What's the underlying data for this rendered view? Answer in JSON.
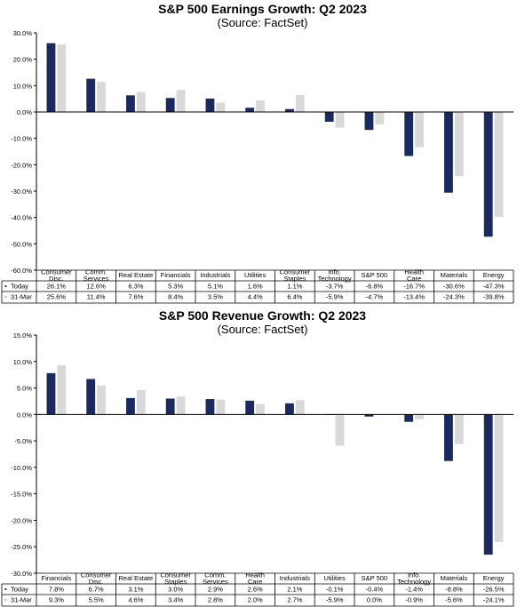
{
  "colors": {
    "today": "#1b2a5e",
    "march": "#d9d9d9",
    "grid": "#000000"
  },
  "chart_data": [
    {
      "type": "bar",
      "title": "S&P 500 Earnings Growth: Q2 2023",
      "subtitle": "(Source: FactSet)",
      "categories": [
        "Consumer Disc.",
        "Comm. Services",
        "Real Estate",
        "Financials",
        "Industrials",
        "Utilities",
        "Consumer Staples",
        "Info. Technology",
        "S&P 500",
        "Health Care",
        "Materials",
        "Energy"
      ],
      "category_lines": [
        [
          "Consumer",
          "Disc."
        ],
        [
          "Comm.",
          "Services"
        ],
        [
          "Real Estate"
        ],
        [
          "Financials"
        ],
        [
          "Industrials"
        ],
        [
          "Utilities"
        ],
        [
          "Consumer",
          "Staples"
        ],
        [
          "Info.",
          "Technology"
        ],
        [
          "S&P 500"
        ],
        [
          "Health",
          "Care"
        ],
        [
          "Materials"
        ],
        [
          "Energy"
        ]
      ],
      "series": [
        {
          "name": "Today",
          "marker": "▪",
          "values": [
            26.1,
            12.6,
            6.3,
            5.3,
            5.1,
            1.6,
            1.1,
            -3.7,
            -6.8,
            -16.7,
            -30.6,
            -47.3
          ],
          "labels": [
            "26.1%",
            "12.6%",
            "6.3%",
            "5.3%",
            "5.1%",
            "1.6%",
            "1.1%",
            "-3.7%",
            "-6.8%",
            "-16.7%",
            "-30.6%",
            "-47.3%"
          ]
        },
        {
          "name": "31-Mar",
          "marker": "▪",
          "values": [
            25.6,
            11.4,
            7.6,
            8.4,
            3.5,
            4.4,
            6.4,
            -5.9,
            -4.7,
            -13.4,
            -24.3,
            -39.8
          ],
          "labels": [
            "25.6%",
            "11.4%",
            "7.6%",
            "8.4%",
            "3.5%",
            "4.4%",
            "6.4%",
            "-5.9%",
            "-4.7%",
            "-13.4%",
            "-24.3%",
            "-39.8%"
          ]
        }
      ],
      "ylim": [
        -60,
        30
      ],
      "yticks": [
        30,
        20,
        10,
        0,
        -10,
        -20,
        -30,
        -40,
        -50,
        -60
      ],
      "ytick_labels": [
        "30.0%",
        "20.0%",
        "10.0%",
        "0.0%",
        "-10.0%",
        "-20.0%",
        "-30.0%",
        "-40.0%",
        "-50.0%",
        "-60.0%"
      ],
      "grid": false,
      "legend": "data-table"
    },
    {
      "type": "bar",
      "title": "S&P 500 Revenue Growth: Q2 2023",
      "subtitle": "(Source: FactSet)",
      "categories": [
        "Financials",
        "Consumer Disc.",
        "Real Estate",
        "Consumer Staples",
        "Comm. Services",
        "Health Care",
        "Industrials",
        "Utilities",
        "S&P 500",
        "Info. Technology",
        "Materials",
        "Energy"
      ],
      "category_lines": [
        [
          "Financials"
        ],
        [
          "Consumer",
          "Disc."
        ],
        [
          "Real Estate"
        ],
        [
          "Consumer",
          "Staples"
        ],
        [
          "Comm.",
          "Services"
        ],
        [
          "Health",
          "Care"
        ],
        [
          "Industrials"
        ],
        [
          "Utilities"
        ],
        [
          "S&P 500"
        ],
        [
          "Info.",
          "Technology"
        ],
        [
          "Materials"
        ],
        [
          "Energy"
        ]
      ],
      "series": [
        {
          "name": "Today",
          "marker": "▪",
          "values": [
            7.8,
            6.7,
            3.1,
            3.0,
            2.9,
            2.6,
            2.1,
            -0.1,
            -0.4,
            -1.4,
            -8.8,
            -26.5
          ],
          "labels": [
            "7.8%",
            "6.7%",
            "3.1%",
            "3.0%",
            "2.9%",
            "2.6%",
            "2.1%",
            "-0.1%",
            "-0.4%",
            "-1.4%",
            "-8.8%",
            "-26.5%"
          ]
        },
        {
          "name": "31-Mar",
          "marker": "▪",
          "values": [
            9.3,
            5.5,
            4.6,
            3.4,
            2.8,
            2.0,
            2.7,
            -5.9,
            0.0,
            -0.9,
            -5.6,
            -24.1
          ],
          "labels": [
            "9.3%",
            "5.5%",
            "4.6%",
            "3.4%",
            "2.8%",
            "2.0%",
            "2.7%",
            "-5.9%",
            "0.0%",
            "-0.9%",
            "-5.6%",
            "-24.1%"
          ]
        }
      ],
      "ylim": [
        -30,
        15
      ],
      "yticks": [
        15,
        10,
        5,
        0,
        -5,
        -10,
        -15,
        -20,
        -25,
        -30
      ],
      "ytick_labels": [
        "15.0%",
        "10.0%",
        "5.0%",
        "0.0%",
        "-5.0%",
        "-10.0%",
        "-15.0%",
        "-20.0%",
        "-25.0%",
        "-30.0%"
      ],
      "grid": false,
      "legend": "data-table"
    }
  ]
}
